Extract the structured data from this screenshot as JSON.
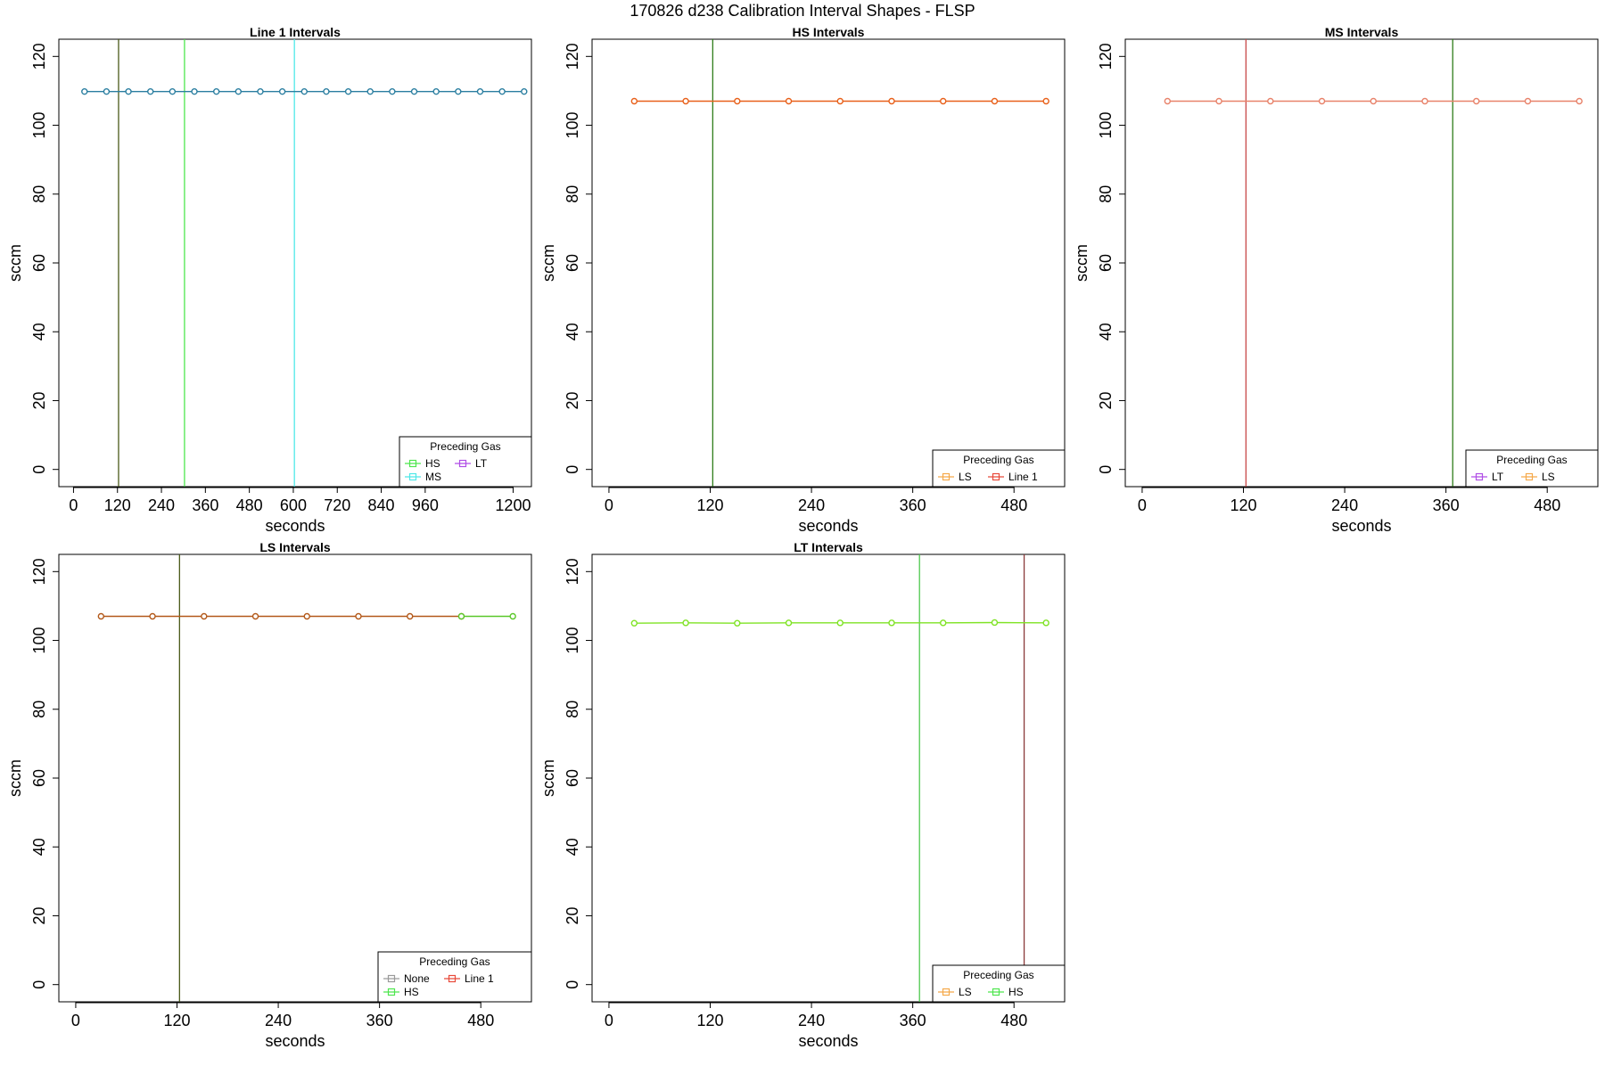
{
  "figure_title": "170826   d238   Calibration Interval Shapes - FLSP",
  "colors": {
    "Line 1": "#2a7ea0",
    "HS": "#e8601a",
    "MS": "#e8826a",
    "LS": "#b3591a",
    "LT": "#7fe324"
  },
  "chart_data": [
    {
      "type": "line",
      "title": "Line 1 Intervals",
      "xlabel": "seconds",
      "ylabel": "sccm",
      "xlim": [
        -40,
        1250
      ],
      "ylim": [
        -5,
        125
      ],
      "xticks": [
        0,
        120,
        240,
        360,
        480,
        600,
        720,
        840,
        960,
        1200
      ],
      "yticks": [
        0,
        20,
        40,
        60,
        80,
        100,
        120
      ],
      "vlines": [
        {
          "x": 123,
          "color": "#4a5a1a"
        },
        {
          "x": 303,
          "color": "#4ee64e"
        },
        {
          "x": 603,
          "color": "#4fe8e8"
        }
      ],
      "series": [
        {
          "color": "#2a7ea0",
          "x": [
            30,
            90,
            150,
            210,
            270,
            330,
            390,
            450,
            510,
            570,
            630,
            690,
            750,
            810,
            870,
            930,
            990,
            1050,
            1110,
            1170,
            1230
          ],
          "y": [
            109.8,
            109.8,
            109.8,
            109.8,
            109.8,
            109.8,
            109.8,
            109.8,
            109.8,
            109.8,
            109.8,
            109.8,
            109.8,
            109.8,
            109.8,
            109.8,
            109.8,
            109.8,
            109.8,
            109.8,
            109.8
          ]
        }
      ],
      "legend": {
        "title": "Preceding Gas",
        "position": "bottom-right",
        "columns": 2,
        "entries": [
          {
            "label": "HS",
            "color": "#4ee64e"
          },
          {
            "label": "LT",
            "color": "#b04ee6"
          },
          {
            "label": "MS",
            "color": "#4fe8e8"
          }
        ]
      }
    },
    {
      "type": "line",
      "title": "HS Intervals",
      "xlabel": "seconds",
      "ylabel": "sccm",
      "xlim": [
        -20,
        540
      ],
      "ylim": [
        -5,
        125
      ],
      "xticks": [
        0,
        120,
        240,
        360,
        480
      ],
      "yticks": [
        0,
        20,
        40,
        60,
        80,
        100,
        120
      ],
      "vlines": [
        {
          "x": 123,
          "color": "#2e7d1a"
        }
      ],
      "series": [
        {
          "color": "#e8601a",
          "x": [
            30,
            91,
            152,
            213,
            274,
            335,
            396,
            457,
            518
          ],
          "y": [
            107,
            107,
            107,
            107,
            107,
            107,
            107,
            107,
            107
          ]
        }
      ],
      "legend": {
        "title": "Preceding Gas",
        "position": "bottom-right",
        "columns": 2,
        "entries": [
          {
            "label": "LS",
            "color": "#f5a94a"
          },
          {
            "label": "Line 1",
            "color": "#e84a3a"
          }
        ]
      }
    },
    {
      "type": "line",
      "title": "MS Intervals",
      "xlabel": "seconds",
      "ylabel": "sccm",
      "xlim": [
        -20,
        540
      ],
      "ylim": [
        -5,
        125
      ],
      "xticks": [
        0,
        120,
        240,
        360,
        480
      ],
      "yticks": [
        0,
        20,
        40,
        60,
        80,
        100,
        120
      ],
      "vlines": [
        {
          "x": 123,
          "color": "#c84a4a"
        },
        {
          "x": 368,
          "color": "#2e7d1a"
        }
      ],
      "series": [
        {
          "color": "#e8826a",
          "x": [
            30,
            91,
            152,
            213,
            274,
            335,
            396,
            457,
            518
          ],
          "y": [
            107,
            107,
            107,
            107,
            107,
            107,
            107,
            107,
            107
          ]
        }
      ],
      "legend": {
        "title": "Preceding Gas",
        "position": "bottom-right",
        "columns": 2,
        "entries": [
          {
            "label": "LT",
            "color": "#b04ee6"
          },
          {
            "label": "LS",
            "color": "#f5a94a"
          }
        ]
      }
    },
    {
      "type": "line",
      "title": "LS Intervals",
      "xlabel": "seconds",
      "ylabel": "sccm",
      "xlim": [
        -20,
        540
      ],
      "ylim": [
        -5,
        125
      ],
      "xticks": [
        0,
        120,
        240,
        360,
        480
      ],
      "yticks": [
        0,
        20,
        40,
        60,
        80,
        100,
        120
      ],
      "vlines": [
        {
          "x": 123,
          "color": "#4a5a1a"
        }
      ],
      "series": [
        {
          "color": "#b3591a",
          "x": [
            30,
            91,
            152,
            213,
            274,
            335,
            396,
            457
          ],
          "y": [
            107,
            107,
            107,
            107,
            107,
            107,
            107,
            107
          ]
        },
        {
          "color": "#5ac82a",
          "x": [
            457,
            518
          ],
          "y": [
            107,
            107
          ]
        }
      ],
      "legend": {
        "title": "Preceding Gas",
        "position": "bottom-right",
        "columns": 2,
        "entries": [
          {
            "label": "None",
            "color": "#9a9a9a"
          },
          {
            "label": "Line 1",
            "color": "#e84a3a"
          },
          {
            "label": "HS",
            "color": "#4ee64e"
          }
        ]
      }
    },
    {
      "type": "line",
      "title": "LT Intervals",
      "xlabel": "seconds",
      "ylabel": "sccm",
      "xlim": [
        -20,
        540
      ],
      "ylim": [
        -5,
        125
      ],
      "xticks": [
        0,
        120,
        240,
        360,
        480
      ],
      "yticks": [
        0,
        20,
        40,
        60,
        80,
        100,
        120
      ],
      "vlines": [
        {
          "x": 368,
          "color": "#4ec84e"
        },
        {
          "x": 492,
          "color": "#8a3a3a"
        }
      ],
      "series": [
        {
          "color": "#7fe324",
          "x": [
            30,
            91,
            152,
            213,
            274,
            335,
            396,
            457,
            518
          ],
          "y": [
            105,
            105.1,
            105,
            105.1,
            105.1,
            105.1,
            105.1,
            105.2,
            105.1
          ]
        }
      ],
      "legend": {
        "title": "Preceding Gas",
        "position": "bottom-right",
        "columns": 2,
        "entries": [
          {
            "label": "LS",
            "color": "#f5a94a"
          },
          {
            "label": "HS",
            "color": "#4ee64e"
          }
        ]
      }
    }
  ]
}
